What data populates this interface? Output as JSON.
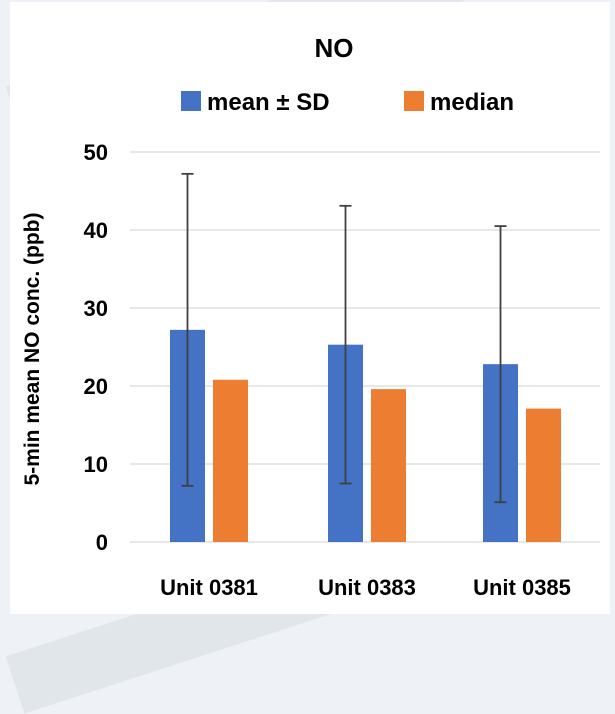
{
  "chart_data": {
    "type": "bar",
    "title": "NO",
    "ylabel": "5-min mean NO conc. (ppb)",
    "xlabel": "",
    "categories": [
      "Unit 0381",
      "Unit 0383",
      "Unit 0385"
    ],
    "series": [
      {
        "name": "mean ± SD",
        "color": "#4472c4",
        "values": [
          27.2,
          25.3,
          22.8
        ],
        "sd": [
          20.0,
          17.8,
          17.7
        ]
      },
      {
        "name": "median",
        "color": "#ed7d31",
        "values": [
          20.8,
          19.6,
          17.1
        ]
      }
    ],
    "ylim": [
      0,
      50
    ],
    "yticks": [
      0,
      10,
      20,
      30,
      40,
      50
    ],
    "grid": true,
    "legend": "top"
  }
}
